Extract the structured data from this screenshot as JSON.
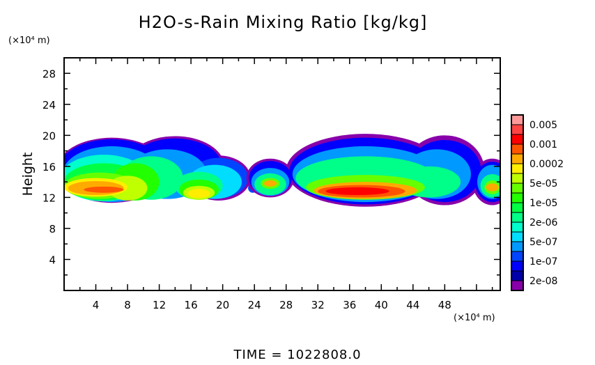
{
  "chart_data": {
    "type": "heatmap",
    "title": "H2O-s-Rain Mixing Ratio [kg/kg]",
    "ylabel": "Height",
    "xlabel": "",
    "x_unit": "(×10⁴ m)",
    "y_unit": "(×10⁴ m)",
    "xlim": [
      0,
      55
    ],
    "ylim": [
      0,
      30
    ],
    "x_ticks": [
      "4",
      "8",
      "12",
      "16",
      "20",
      "24",
      "28",
      "32",
      "36",
      "40",
      "44",
      "48"
    ],
    "y_ticks": [
      "4",
      "8",
      "12",
      "16",
      "20",
      "24",
      "28"
    ],
    "footer": "TIME = 1022808.0",
    "colorbar": {
      "colors_low_to_high": [
        "#8800aa",
        "#0000aa",
        "#0000ff",
        "#0044ff",
        "#0099ff",
        "#00ddff",
        "#00ffcc",
        "#00ff88",
        "#00ff44",
        "#22ff00",
        "#66ff00",
        "#c0ff00",
        "#ffee00",
        "#ffaa00",
        "#ff5500",
        "#ff0000",
        "#ff4444",
        "#ff9999"
      ],
      "labels_high_to_low": [
        "0.005",
        "0.001",
        "0.0002",
        "5e-05",
        "1e-05",
        "2e-06",
        "5e-07",
        "1e-07",
        "2e-08"
      ]
    },
    "regions": [
      {
        "x": 6,
        "y": 15.5,
        "rx": 7,
        "ry": 4.2,
        "level": 0
      },
      {
        "x": 14,
        "y": 16,
        "rx": 6.2,
        "ry": 3.9,
        "level": 0
      },
      {
        "x": 19.5,
        "y": 14.5,
        "rx": 4,
        "ry": 2.9,
        "level": 0
      },
      {
        "x": 6,
        "y": 15.5,
        "rx": 6.8,
        "ry": 4,
        "level": 2
      },
      {
        "x": 14,
        "y": 16,
        "rx": 5.9,
        "ry": 3.6,
        "level": 2
      },
      {
        "x": 19.5,
        "y": 14.5,
        "rx": 3.7,
        "ry": 2.6,
        "level": 3
      },
      {
        "x": 23.8,
        "y": 13.2,
        "rx": 0.6,
        "ry": 0.6,
        "level": 3
      },
      {
        "x": 6,
        "y": 15,
        "rx": 6.2,
        "ry": 3.6,
        "level": 4
      },
      {
        "x": 13,
        "y": 15,
        "rx": 5,
        "ry": 3.2,
        "level": 4
      },
      {
        "x": 19,
        "y": 14,
        "rx": 3.4,
        "ry": 2.2,
        "level": 5
      },
      {
        "x": 5,
        "y": 14.5,
        "rx": 5.5,
        "ry": 3,
        "level": 6
      },
      {
        "x": 11,
        "y": 14.5,
        "rx": 4,
        "ry": 2.8,
        "level": 7
      },
      {
        "x": 17,
        "y": 13.5,
        "rx": 3,
        "ry": 1.8,
        "level": 7
      },
      {
        "x": 5,
        "y": 14,
        "rx": 5,
        "ry": 2.4,
        "level": 8
      },
      {
        "x": 9,
        "y": 14,
        "rx": 3,
        "ry": 2.4,
        "level": 9
      },
      {
        "x": 17,
        "y": 13,
        "rx": 2.5,
        "ry": 1.3,
        "level": 9
      },
      {
        "x": 4.5,
        "y": 13.5,
        "rx": 4.5,
        "ry": 1.7,
        "level": 10
      },
      {
        "x": 8,
        "y": 13.2,
        "rx": 2.5,
        "ry": 1.6,
        "level": 11
      },
      {
        "x": 17,
        "y": 12.6,
        "rx": 2,
        "ry": 0.9,
        "level": 11
      },
      {
        "x": 4,
        "y": 13.3,
        "rx": 4,
        "ry": 1.2,
        "level": 12
      },
      {
        "x": 17,
        "y": 12.5,
        "rx": 1.4,
        "ry": 0.6,
        "level": 12
      },
      {
        "x": 4,
        "y": 13.2,
        "rx": 3.5,
        "ry": 0.9,
        "level": 13
      },
      {
        "x": 5,
        "y": 13,
        "rx": 2.5,
        "ry": 0.4,
        "level": 14
      },
      {
        "x": 26,
        "y": 14.5,
        "rx": 3,
        "ry": 2.5,
        "level": 0
      },
      {
        "x": 38,
        "y": 15.5,
        "rx": 10,
        "ry": 4.7,
        "level": 0
      },
      {
        "x": 48,
        "y": 15.5,
        "rx": 5,
        "ry": 4.5,
        "level": 0
      },
      {
        "x": 54,
        "y": 14,
        "rx": 2.5,
        "ry": 3,
        "level": 0
      },
      {
        "x": 26,
        "y": 14.5,
        "rx": 2.7,
        "ry": 2.2,
        "level": 2
      },
      {
        "x": 38,
        "y": 15.4,
        "rx": 9.6,
        "ry": 4.3,
        "level": 2
      },
      {
        "x": 48,
        "y": 15.4,
        "rx": 4.6,
        "ry": 4,
        "level": 2
      },
      {
        "x": 54,
        "y": 14,
        "rx": 2.2,
        "ry": 2.6,
        "level": 2
      },
      {
        "x": 26,
        "y": 14,
        "rx": 2.4,
        "ry": 1.8,
        "level": 4
      },
      {
        "x": 38,
        "y": 15,
        "rx": 9.2,
        "ry": 3.6,
        "level": 4
      },
      {
        "x": 47,
        "y": 15,
        "rx": 4.3,
        "ry": 3.2,
        "level": 4
      },
      {
        "x": 54,
        "y": 14,
        "rx": 1.9,
        "ry": 2.2,
        "level": 4
      },
      {
        "x": 26,
        "y": 13.7,
        "rx": 2,
        "ry": 1.4,
        "level": 7
      },
      {
        "x": 38,
        "y": 14.5,
        "rx": 8.8,
        "ry": 2.8,
        "level": 7
      },
      {
        "x": 46,
        "y": 14,
        "rx": 4,
        "ry": 2,
        "level": 7
      },
      {
        "x": 54,
        "y": 13.5,
        "rx": 1.5,
        "ry": 1.5,
        "level": 7
      },
      {
        "x": 26,
        "y": 13.8,
        "rx": 1.2,
        "ry": 0.7,
        "level": 10
      },
      {
        "x": 38,
        "y": 13.3,
        "rx": 7.5,
        "ry": 1.6,
        "level": 10
      },
      {
        "x": 54,
        "y": 13.3,
        "rx": 1,
        "ry": 0.9,
        "level": 10
      },
      {
        "x": 26,
        "y": 13.8,
        "rx": 0.8,
        "ry": 0.4,
        "level": 13
      },
      {
        "x": 38,
        "y": 12.9,
        "rx": 6.5,
        "ry": 1.1,
        "level": 13
      },
      {
        "x": 54,
        "y": 13.3,
        "rx": 0.8,
        "ry": 0.5,
        "level": 13
      },
      {
        "x": 37.5,
        "y": 12.8,
        "rx": 5.5,
        "ry": 0.8,
        "level": 14
      },
      {
        "x": 37,
        "y": 12.8,
        "rx": 4,
        "ry": 0.5,
        "level": 15
      }
    ]
  }
}
